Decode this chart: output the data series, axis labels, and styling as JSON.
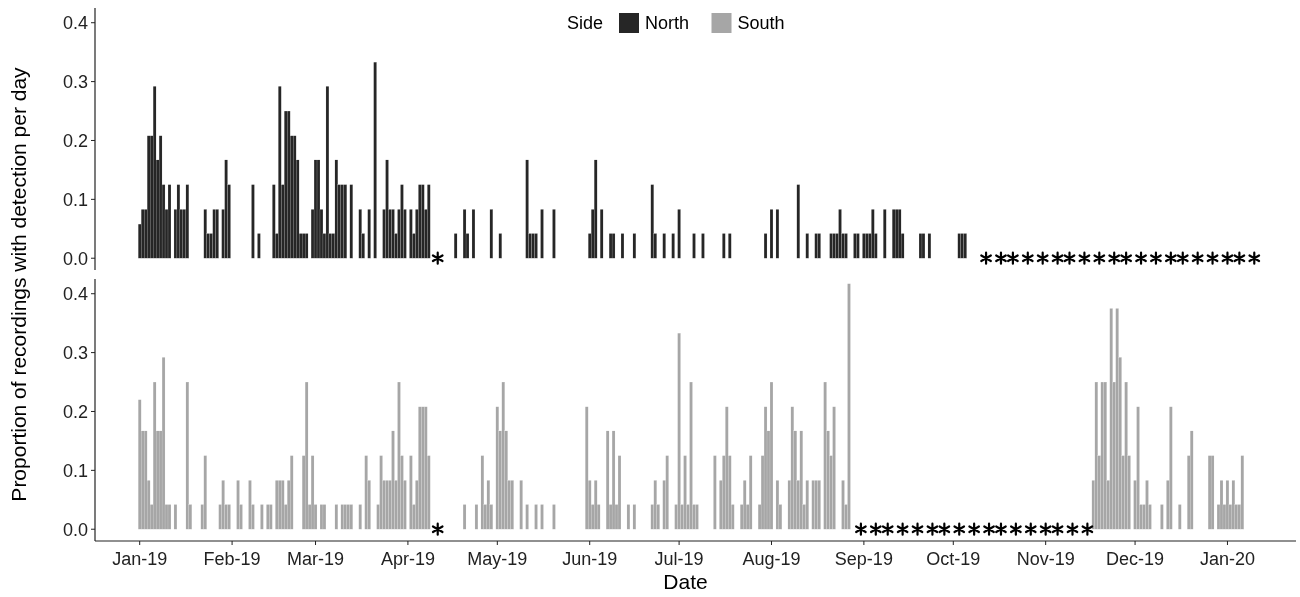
{
  "chart_data": [
    {
      "type": "bar",
      "legend": "top",
      "legend_title": "Side",
      "ylabel": "Proportion of recordings with detection per day",
      "tick_labels": "y",
      "xlim": [
        "2018-12-17",
        "2020-01-24"
      ],
      "ylim": [
        -0.02,
        0.425
      ],
      "yticks": [
        {
          "value": 0,
          "label": "0.0"
        },
        {
          "value": 0.1,
          "label": "0.1"
        },
        {
          "value": 0.2,
          "label": "0.2"
        },
        {
          "value": 0.3,
          "label": "0.3"
        },
        {
          "value": 0.4,
          "label": "0.4"
        }
      ],
      "x": [
        "2019-01-01",
        "2019-01-02",
        "2019-01-03",
        "2019-01-04",
        "2019-01-05",
        "2019-01-06",
        "2019-01-07",
        "2019-01-08",
        "2019-01-09",
        "2019-01-10",
        "2019-01-11",
        "2019-01-12",
        "2019-01-13",
        "2019-01-14",
        "2019-01-15",
        "2019-01-16",
        "2019-01-17",
        "2019-01-18",
        "2019-01-19",
        "2019-01-20",
        "2019-01-21",
        "2019-01-22",
        "2019-01-23",
        "2019-01-24",
        "2019-01-25",
        "2019-01-26",
        "2019-01-27",
        "2019-01-28",
        "2019-01-29",
        "2019-01-30",
        "2019-01-31",
        "2019-02-01",
        "2019-02-02",
        "2019-02-03",
        "2019-02-04",
        "2019-02-05",
        "2019-02-06",
        "2019-02-07",
        "2019-02-08",
        "2019-02-09",
        "2019-02-10",
        "2019-02-11",
        "2019-02-12",
        "2019-02-13",
        "2019-02-14",
        "2019-02-15",
        "2019-02-16",
        "2019-02-17",
        "2019-02-18",
        "2019-02-19",
        "2019-02-20",
        "2019-02-21",
        "2019-02-22",
        "2019-02-23",
        "2019-02-24",
        "2019-02-25",
        "2019-02-26",
        "2019-02-27",
        "2019-02-28",
        "2019-03-01",
        "2019-03-02",
        "2019-03-03",
        "2019-03-04",
        "2019-03-05",
        "2019-03-06",
        "2019-03-07",
        "2019-03-08",
        "2019-03-09",
        "2019-03-10",
        "2019-03-11",
        "2019-03-12",
        "2019-03-13",
        "2019-03-14",
        "2019-03-15",
        "2019-03-16",
        "2019-03-17",
        "2019-03-18",
        "2019-03-19",
        "2019-03-20",
        "2019-03-21",
        "2019-03-22",
        "2019-03-23",
        "2019-03-24",
        "2019-03-25",
        "2019-03-26",
        "2019-03-27",
        "2019-03-28",
        "2019-03-29",
        "2019-03-30",
        "2019-03-31",
        "2019-04-01",
        "2019-04-02",
        "2019-04-03",
        "2019-04-04",
        "2019-04-05",
        "2019-04-06",
        "2019-04-07",
        "2019-04-08",
        "2019-04-14",
        "2019-04-15",
        "2019-04-16",
        "2019-04-17",
        "2019-04-18",
        "2019-04-19",
        "2019-04-20",
        "2019-04-21",
        "2019-04-22",
        "2019-04-23",
        "2019-04-24",
        "2019-04-25",
        "2019-04-26",
        "2019-04-27",
        "2019-04-28",
        "2019-04-29",
        "2019-04-30",
        "2019-05-01",
        "2019-05-02",
        "2019-05-03",
        "2019-05-04",
        "2019-05-05",
        "2019-05-06",
        "2019-05-07",
        "2019-05-08",
        "2019-05-09",
        "2019-05-10",
        "2019-05-11",
        "2019-05-12",
        "2019-05-13",
        "2019-05-14",
        "2019-05-15",
        "2019-05-16",
        "2019-05-17",
        "2019-05-18",
        "2019-05-19",
        "2019-05-20",
        "2019-05-21",
        "2019-05-22",
        "2019-05-23",
        "2019-05-24",
        "2019-05-25",
        "2019-05-26",
        "2019-05-27",
        "2019-05-28",
        "2019-05-29",
        "2019-05-30",
        "2019-05-31",
        "2019-06-01",
        "2019-06-02",
        "2019-06-03",
        "2019-06-04",
        "2019-06-05",
        "2019-06-06",
        "2019-06-07",
        "2019-06-08",
        "2019-06-09",
        "2019-06-10",
        "2019-06-11",
        "2019-06-12",
        "2019-06-13",
        "2019-06-14",
        "2019-06-15",
        "2019-06-16",
        "2019-06-17",
        "2019-06-18",
        "2019-06-19",
        "2019-06-20",
        "2019-06-21",
        "2019-06-22",
        "2019-06-23",
        "2019-06-24",
        "2019-06-25",
        "2019-06-26",
        "2019-06-27",
        "2019-06-28",
        "2019-06-29",
        "2019-06-30",
        "2019-07-01",
        "2019-07-02",
        "2019-07-03",
        "2019-07-04",
        "2019-07-05",
        "2019-07-06",
        "2019-07-07",
        "2019-07-08",
        "2019-07-09",
        "2019-07-10",
        "2019-07-11",
        "2019-07-12",
        "2019-07-13",
        "2019-07-14",
        "2019-07-15",
        "2019-07-16",
        "2019-07-17",
        "2019-07-18",
        "2019-07-19",
        "2019-07-20",
        "2019-07-21",
        "2019-07-22",
        "2019-07-23",
        "2019-07-24",
        "2019-07-25",
        "2019-07-26",
        "2019-07-27",
        "2019-07-28",
        "2019-07-29",
        "2019-07-30",
        "2019-07-31",
        "2019-08-01",
        "2019-08-02",
        "2019-08-03",
        "2019-08-04",
        "2019-08-05",
        "2019-08-06",
        "2019-08-07",
        "2019-08-08",
        "2019-08-09",
        "2019-08-10",
        "2019-08-11",
        "2019-08-12",
        "2019-08-13",
        "2019-08-14",
        "2019-08-15",
        "2019-08-16",
        "2019-08-17",
        "2019-08-18",
        "2019-08-19",
        "2019-08-20",
        "2019-08-21",
        "2019-08-22",
        "2019-08-23",
        "2019-08-24",
        "2019-08-25",
        "2019-08-26",
        "2019-08-27",
        "2019-08-28",
        "2019-08-29",
        "2019-08-30",
        "2019-08-31",
        "2019-09-01",
        "2019-09-02",
        "2019-09-03",
        "2019-09-04",
        "2019-09-05",
        "2019-09-06",
        "2019-09-07",
        "2019-09-08",
        "2019-09-09",
        "2019-09-10",
        "2019-09-11",
        "2019-09-12",
        "2019-09-13",
        "2019-09-14",
        "2019-09-15",
        "2019-09-16",
        "2019-09-17",
        "2019-09-18",
        "2019-09-19",
        "2019-09-20",
        "2019-09-21",
        "2019-09-22",
        "2019-09-23",
        "2019-09-24",
        "2019-09-25",
        "2019-09-26",
        "2019-09-27",
        "2019-09-28",
        "2019-09-29",
        "2019-09-30",
        "2019-10-01",
        "2019-10-02",
        "2019-10-03",
        "2019-10-04",
        "2019-10-05"
      ],
      "series": [
        {
          "name": "North",
          "color": "#262626",
          "values": [
            0.058,
            0.083,
            0.083,
            0.208,
            0.208,
            0.292,
            0.167,
            0.208,
            0.125,
            0.083,
            0.125,
            0,
            0.083,
            0.125,
            0.083,
            0.083,
            0.125,
            0,
            0,
            0,
            0,
            0,
            0.083,
            0.042,
            0.042,
            0.083,
            0.083,
            0,
            0.083,
            0.167,
            0.125,
            0,
            0,
            0,
            0,
            0,
            0,
            0,
            0.125,
            0,
            0.042,
            0,
            0,
            0,
            0,
            0.125,
            0.042,
            0.292,
            0.125,
            0.25,
            0.25,
            0.208,
            0.208,
            0.167,
            0.042,
            0.042,
            0.042,
            0,
            0.083,
            0.167,
            0.167,
            0.083,
            0.042,
            0.292,
            0.042,
            0.042,
            0.167,
            0.125,
            0.125,
            0.125,
            0,
            0.125,
            0,
            0,
            0.083,
            0.042,
            0,
            0.083,
            0,
            0.333,
            0,
            0,
            0.083,
            0.167,
            0.083,
            0.083,
            0.042,
            0.083,
            0.125,
            0.083,
            0,
            0.083,
            0.042,
            0.083,
            0.125,
            0.125,
            0.083,
            0.125,
            0,
            0,
            0,
            0.042,
            0,
            0,
            0.083,
            0.042,
            0,
            0.083,
            0,
            0,
            0,
            0,
            0,
            0.083,
            0,
            0,
            0.042,
            0,
            0,
            0,
            0,
            0,
            0,
            0,
            0,
            0.167,
            0.042,
            0.042,
            0.042,
            0,
            0.083,
            0,
            0,
            0,
            0.083,
            0,
            0,
            0,
            0,
            0,
            0,
            0,
            0,
            0,
            0,
            0,
            0.042,
            0.083,
            0.167,
            0,
            0.083,
            0,
            0,
            0.042,
            0.042,
            0,
            0,
            0.042,
            0,
            0,
            0,
            0.042,
            0,
            0,
            0,
            0,
            0,
            0.125,
            0.042,
            0,
            0,
            0.042,
            0,
            0,
            0.042,
            0,
            0.083,
            0,
            0,
            0,
            0,
            0.042,
            0,
            0,
            0.042,
            0,
            0,
            0,
            0,
            0,
            0,
            0.042,
            0,
            0.042,
            0,
            0,
            0,
            0,
            0,
            0,
            0,
            0,
            0,
            0,
            0,
            0.042,
            0,
            0.083,
            0,
            0.083,
            0,
            0,
            0,
            0,
            0,
            0,
            0.125,
            0,
            0,
            0.042,
            0,
            0,
            0.042,
            0.042,
            0,
            0,
            0,
            0.042,
            0.042,
            0.042,
            0.083,
            0.042,
            0.042,
            0,
            0,
            0.042,
            0.042,
            0,
            0.042,
            0.042,
            0.042,
            0.083,
            0.042,
            0,
            0,
            0.083,
            0,
            0,
            0.083,
            0.083,
            0.083,
            0.042,
            0,
            0,
            0,
            0,
            0,
            0.042,
            0.042,
            0,
            0.042,
            0,
            0,
            0,
            0,
            0,
            0,
            0,
            0,
            0,
            0.042,
            0.042,
            0.042
          ]
        },
        {
          "type": "scatter",
          "marker": "cross",
          "color": "#000000",
          "x": [
            "2019-04-11",
            "2019-10-12",
            "2019-10-17",
            "2019-10-21",
            "2019-10-26",
            "2019-10-31",
            "2019-11-05",
            "2019-11-09",
            "2019-11-14",
            "2019-11-19",
            "2019-11-24",
            "2019-11-28",
            "2019-12-03",
            "2019-12-08",
            "2019-12-13",
            "2019-12-17",
            "2019-12-22",
            "2019-12-27",
            "2020-01-01",
            "2020-01-05",
            "2020-01-10"
          ],
          "values": [
            0,
            0,
            0,
            0,
            0,
            0,
            0,
            0,
            0,
            0,
            0,
            0,
            0,
            0,
            0,
            0,
            0,
            0,
            0,
            0,
            0
          ]
        }
      ]
    },
    {
      "type": "bar",
      "legend": "top",
      "xlabel": "Date",
      "xlim": [
        "2018-12-17",
        "2020-01-24"
      ],
      "ylim": [
        -0.02,
        0.425
      ],
      "yticks": [
        {
          "value": 0,
          "label": "0.0"
        },
        {
          "value": 0.1,
          "label": "0.1"
        },
        {
          "value": 0.2,
          "label": "0.2"
        },
        {
          "value": 0.3,
          "label": "0.3"
        },
        {
          "value": 0.4,
          "label": "0.4"
        }
      ],
      "xticks": [
        {
          "value": "2019-01-01",
          "label": "Jan-19"
        },
        {
          "value": "2019-02-01",
          "label": "Feb-19"
        },
        {
          "value": "2019-03-01",
          "label": "Mar-19"
        },
        {
          "value": "2019-04-01",
          "label": "Apr-19"
        },
        {
          "value": "2019-05-01",
          "label": "May-19"
        },
        {
          "value": "2019-06-01",
          "label": "Jun-19"
        },
        {
          "value": "2019-07-01",
          "label": "Jul-19"
        },
        {
          "value": "2019-08-01",
          "label": "Aug-19"
        },
        {
          "value": "2019-09-01",
          "label": "Sep-19"
        },
        {
          "value": "2019-10-01",
          "label": "Oct-19"
        },
        {
          "value": "2019-11-01",
          "label": "Nov-19"
        },
        {
          "value": "2019-12-01",
          "label": "Dec-19"
        },
        {
          "value": "2020-01-01",
          "label": "Jan-20"
        }
      ],
      "x": [
        "2019-01-01",
        "2019-01-02",
        "2019-01-03",
        "2019-01-04",
        "2019-01-05",
        "2019-01-06",
        "2019-01-07",
        "2019-01-08",
        "2019-01-09",
        "2019-01-10",
        "2019-01-11",
        "2019-01-12",
        "2019-01-13",
        "2019-01-14",
        "2019-01-15",
        "2019-01-16",
        "2019-01-17",
        "2019-01-18",
        "2019-01-19",
        "2019-01-20",
        "2019-01-21",
        "2019-01-22",
        "2019-01-23",
        "2019-01-24",
        "2019-01-25",
        "2019-01-26",
        "2019-01-27",
        "2019-01-28",
        "2019-01-29",
        "2019-01-30",
        "2019-01-31",
        "2019-02-01",
        "2019-02-02",
        "2019-02-03",
        "2019-02-04",
        "2019-02-05",
        "2019-02-06",
        "2019-02-07",
        "2019-02-08",
        "2019-02-09",
        "2019-02-10",
        "2019-02-11",
        "2019-02-12",
        "2019-02-13",
        "2019-02-14",
        "2019-02-15",
        "2019-02-16",
        "2019-02-17",
        "2019-02-18",
        "2019-02-19",
        "2019-02-20",
        "2019-02-21",
        "2019-02-22",
        "2019-02-23",
        "2019-02-24",
        "2019-02-25",
        "2019-02-26",
        "2019-02-27",
        "2019-02-28",
        "2019-03-01",
        "2019-03-02",
        "2019-03-03",
        "2019-03-04",
        "2019-03-05",
        "2019-03-06",
        "2019-03-07",
        "2019-03-08",
        "2019-03-09",
        "2019-03-10",
        "2019-03-11",
        "2019-03-12",
        "2019-03-13",
        "2019-03-14",
        "2019-03-15",
        "2019-03-16",
        "2019-03-17",
        "2019-03-18",
        "2019-03-19",
        "2019-03-20",
        "2019-03-21",
        "2019-03-22",
        "2019-03-23",
        "2019-03-24",
        "2019-03-25",
        "2019-03-26",
        "2019-03-27",
        "2019-03-28",
        "2019-03-29",
        "2019-03-30",
        "2019-03-31",
        "2019-04-01",
        "2019-04-02",
        "2019-04-03",
        "2019-04-04",
        "2019-04-05",
        "2019-04-06",
        "2019-04-07",
        "2019-04-08",
        "2019-04-14",
        "2019-04-15",
        "2019-04-16",
        "2019-04-17",
        "2019-04-18",
        "2019-04-19",
        "2019-04-20",
        "2019-04-21",
        "2019-04-22",
        "2019-04-23",
        "2019-04-24",
        "2019-04-25",
        "2019-04-26",
        "2019-04-27",
        "2019-04-28",
        "2019-04-29",
        "2019-04-30",
        "2019-05-01",
        "2019-05-02",
        "2019-05-03",
        "2019-05-04",
        "2019-05-05",
        "2019-05-06",
        "2019-05-07",
        "2019-05-08",
        "2019-05-09",
        "2019-05-10",
        "2019-05-11",
        "2019-05-12",
        "2019-05-13",
        "2019-05-14",
        "2019-05-15",
        "2019-05-16",
        "2019-05-17",
        "2019-05-18",
        "2019-05-19",
        "2019-05-20",
        "2019-05-21",
        "2019-05-22",
        "2019-05-23",
        "2019-05-24",
        "2019-05-25",
        "2019-05-26",
        "2019-05-27",
        "2019-05-28",
        "2019-05-29",
        "2019-05-30",
        "2019-05-31",
        "2019-06-01",
        "2019-06-02",
        "2019-06-03",
        "2019-06-04",
        "2019-06-05",
        "2019-06-06",
        "2019-06-07",
        "2019-06-08",
        "2019-06-09",
        "2019-06-10",
        "2019-06-11",
        "2019-06-12",
        "2019-06-13",
        "2019-06-14",
        "2019-06-15",
        "2019-06-16",
        "2019-06-17",
        "2019-06-18",
        "2019-06-19",
        "2019-06-20",
        "2019-06-21",
        "2019-06-22",
        "2019-06-23",
        "2019-06-24",
        "2019-06-25",
        "2019-06-26",
        "2019-06-27",
        "2019-06-28",
        "2019-06-29",
        "2019-06-30",
        "2019-07-01",
        "2019-07-02",
        "2019-07-03",
        "2019-07-04",
        "2019-07-05",
        "2019-07-06",
        "2019-07-07",
        "2019-07-08",
        "2019-07-09",
        "2019-07-10",
        "2019-07-11",
        "2019-07-12",
        "2019-07-13",
        "2019-07-14",
        "2019-07-15",
        "2019-07-16",
        "2019-07-17",
        "2019-07-18",
        "2019-07-19",
        "2019-07-20",
        "2019-07-21",
        "2019-07-22",
        "2019-07-23",
        "2019-07-24",
        "2019-07-25",
        "2019-07-26",
        "2019-07-27",
        "2019-07-28",
        "2019-07-29",
        "2019-07-30",
        "2019-07-31",
        "2019-08-01",
        "2019-08-02",
        "2019-08-03",
        "2019-08-04",
        "2019-08-05",
        "2019-08-06",
        "2019-08-07",
        "2019-08-08",
        "2019-08-09",
        "2019-08-10",
        "2019-08-11",
        "2019-08-12",
        "2019-08-13",
        "2019-08-14",
        "2019-08-15",
        "2019-08-16",
        "2019-08-17",
        "2019-08-18",
        "2019-08-19",
        "2019-08-20",
        "2019-08-21",
        "2019-08-22",
        "2019-08-23",
        "2019-08-24",
        "2019-08-25",
        "2019-08-26",
        "2019-08-27",
        "2019-11-17",
        "2019-11-18",
        "2019-11-19",
        "2019-11-20",
        "2019-11-21",
        "2019-11-22",
        "2019-11-23",
        "2019-11-24",
        "2019-11-25",
        "2019-11-26",
        "2019-11-27",
        "2019-11-28",
        "2019-11-29",
        "2019-11-30",
        "2019-12-01",
        "2019-12-02",
        "2019-12-03",
        "2019-12-04",
        "2019-12-05",
        "2019-12-06",
        "2019-12-07",
        "2019-12-08",
        "2019-12-09",
        "2019-12-10",
        "2019-12-11",
        "2019-12-12",
        "2019-12-13",
        "2019-12-14",
        "2019-12-15",
        "2019-12-16",
        "2019-12-17",
        "2019-12-18",
        "2019-12-19",
        "2019-12-20",
        "2019-12-21",
        "2019-12-22",
        "2019-12-23",
        "2019-12-24",
        "2019-12-25",
        "2019-12-26",
        "2019-12-27",
        "2019-12-28",
        "2019-12-29",
        "2019-12-30",
        "2019-12-31",
        "2020-01-01",
        "2020-01-02",
        "2020-01-03",
        "2020-01-04",
        "2020-01-05",
        "2020-01-06"
      ],
      "series": [
        {
          "name": "South",
          "color": "#a6a6a6",
          "values": [
            0.22,
            0.167,
            0.167,
            0.083,
            0.042,
            0.25,
            0.167,
            0.167,
            0.292,
            0.042,
            0.042,
            0,
            0.042,
            0,
            0,
            0,
            0.25,
            0.042,
            0,
            0,
            0,
            0.042,
            0.125,
            0,
            0,
            0,
            0,
            0.042,
            0.083,
            0.042,
            0.042,
            0,
            0,
            0.083,
            0.042,
            0,
            0,
            0.083,
            0.042,
            0,
            0,
            0.042,
            0,
            0.042,
            0.042,
            0,
            0.083,
            0.083,
            0.083,
            0.042,
            0.083,
            0.125,
            0,
            0,
            0,
            0.125,
            0.25,
            0.042,
            0.125,
            0.042,
            0,
            0.042,
            0.042,
            0,
            0,
            0,
            0.042,
            0,
            0.042,
            0.042,
            0.042,
            0.042,
            0,
            0,
            0.042,
            0,
            0.125,
            0.083,
            0,
            0,
            0.042,
            0.125,
            0.083,
            0.083,
            0.083,
            0.167,
            0.083,
            0.25,
            0.125,
            0.083,
            0,
            0.125,
            0.042,
            0.083,
            0.208,
            0.208,
            0.208,
            0.125,
            0,
            0,
            0,
            0,
            0,
            0,
            0.042,
            0,
            0,
            0,
            0.042,
            0,
            0.125,
            0.042,
            0.083,
            0.042,
            0,
            0.208,
            0.167,
            0.25,
            0.167,
            0.083,
            0.083,
            0,
            0,
            0.083,
            0,
            0.042,
            0,
            0,
            0.042,
            0,
            0.042,
            0,
            0,
            0,
            0.042,
            0,
            0,
            0,
            0,
            0,
            0,
            0,
            0,
            0,
            0,
            0.208,
            0.083,
            0.042,
            0.083,
            0.042,
            0,
            0,
            0.167,
            0.042,
            0.167,
            0.042,
            0.125,
            0,
            0,
            0.042,
            0,
            0.042,
            0,
            0,
            0,
            0,
            0,
            0.042,
            0.083,
            0.042,
            0,
            0.083,
            0.125,
            0,
            0,
            0.042,
            0.333,
            0.042,
            0.125,
            0.042,
            0.25,
            0.042,
            0.042,
            0,
            0,
            0,
            0,
            0,
            0.125,
            0,
            0.083,
            0.125,
            0.208,
            0.125,
            0.042,
            0,
            0,
            0.042,
            0.083,
            0.042,
            0.125,
            0,
            0,
            0.042,
            0.125,
            0.208,
            0.167,
            0.25,
            0,
            0.083,
            0.042,
            0,
            0,
            0.083,
            0.208,
            0.167,
            0.083,
            0.167,
            0.042,
            0.083,
            0,
            0.083,
            0.083,
            0.083,
            0,
            0.25,
            0.167,
            0.125,
            0.208,
            0,
            0,
            0.083,
            0.042,
            0.417,
            0.083,
            0.25,
            0.125,
            0.25,
            0.25,
            0.083,
            0.375,
            0.25,
            0.375,
            0.292,
            0.125,
            0.25,
            0.125,
            0,
            0.083,
            0.208,
            0.042,
            0.042,
            0.083,
            0.042,
            0,
            0,
            0,
            0.042,
            0,
            0.083,
            0.208,
            0,
            0,
            0.042,
            0,
            0,
            0.125,
            0.167,
            0,
            0,
            0,
            0,
            0,
            0.125,
            0.125,
            0,
            0.042,
            0.083,
            0.042,
            0.083,
            0.042,
            0.083,
            0.042,
            0.042,
            0.125
          ]
        },
        {
          "type": "scatter",
          "marker": "cross",
          "color": "#000000",
          "x": [
            "2019-04-11",
            "2019-08-31",
            "2019-09-05",
            "2019-09-09",
            "2019-09-14",
            "2019-09-19",
            "2019-09-24",
            "2019-09-28",
            "2019-10-03",
            "2019-10-08",
            "2019-10-13",
            "2019-10-17",
            "2019-10-22",
            "2019-10-27",
            "2019-11-01",
            "2019-11-05",
            "2019-11-10",
            "2019-11-15"
          ],
          "values": [
            0,
            0,
            0,
            0,
            0,
            0,
            0,
            0,
            0,
            0,
            0,
            0,
            0,
            0,
            0,
            0,
            0,
            0
          ]
        }
      ]
    }
  ]
}
